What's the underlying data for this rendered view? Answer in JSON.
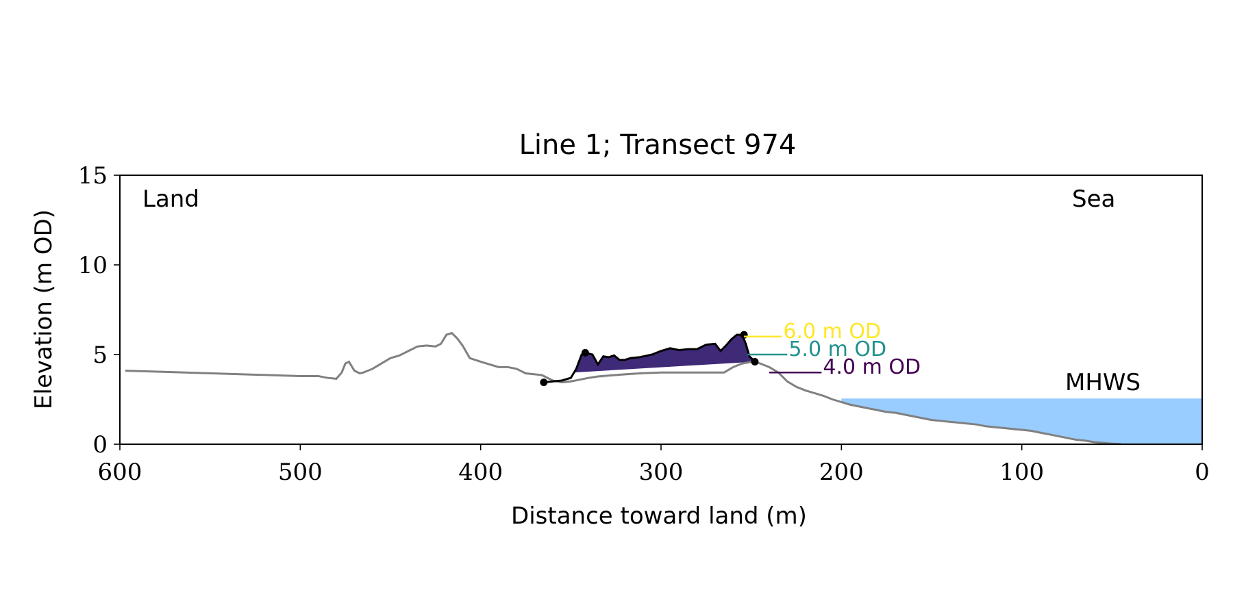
{
  "chart_data": {
    "type": "area",
    "title": "Line 1; Transect 974",
    "xlabel": "Distance toward land (m)",
    "ylabel": "Elevation (m OD)",
    "xlim": [
      600,
      0
    ],
    "ylim": [
      0,
      15
    ],
    "x_ticks": [
      600,
      500,
      400,
      300,
      200,
      100,
      0
    ],
    "y_ticks": [
      0,
      5,
      10,
      15
    ],
    "grid": false,
    "annotations": {
      "land": "Land",
      "sea": "Sea",
      "mhws": "MHWS"
    },
    "mhws": {
      "label": "MHWS",
      "elevation": 2.55,
      "x_start": 200,
      "color": "#99ccff",
      "label_color": "#6699cc"
    },
    "profile": {
      "color": "#808080",
      "x": [
        597,
        500,
        490,
        485,
        480,
        477,
        475,
        473,
        470,
        467,
        465,
        460,
        455,
        450,
        445,
        440,
        435,
        430,
        425,
        422,
        419,
        416,
        413,
        410,
        406,
        400,
        395,
        390,
        385,
        380,
        375,
        370,
        366,
        360,
        355,
        350,
        345,
        340,
        335,
        330,
        325,
        320,
        315,
        310,
        305,
        300,
        295,
        290,
        285,
        280,
        275,
        270,
        265,
        260,
        255,
        252,
        250,
        248,
        245,
        240,
        235,
        230,
        225,
        220,
        215,
        210,
        205,
        200,
        195,
        190,
        185,
        180,
        175,
        170,
        165,
        160,
        155,
        150,
        145,
        140,
        135,
        130,
        125,
        120,
        115,
        110,
        105,
        100,
        95,
        90,
        85,
        80,
        75,
        70,
        65,
        60,
        55,
        50,
        45
      ],
      "y": [
        4.1,
        3.8,
        3.8,
        3.7,
        3.65,
        4.0,
        4.5,
        4.6,
        4.1,
        3.95,
        4.0,
        4.2,
        4.5,
        4.8,
        4.95,
        5.2,
        5.45,
        5.5,
        5.45,
        5.6,
        6.1,
        6.2,
        5.9,
        5.5,
        4.8,
        4.6,
        4.45,
        4.3,
        4.3,
        4.2,
        3.95,
        3.9,
        3.85,
        3.55,
        3.45,
        3.5,
        3.6,
        3.7,
        3.78,
        3.82,
        3.86,
        3.9,
        3.93,
        3.96,
        3.98,
        4.0,
        4.0,
        4.0,
        4.0,
        4.0,
        4.0,
        4.0,
        4.0,
        4.3,
        4.5,
        4.55,
        4.6,
        4.6,
        4.5,
        4.3,
        4.0,
        3.5,
        3.2,
        3.0,
        2.85,
        2.7,
        2.5,
        2.35,
        2.2,
        2.1,
        2.0,
        1.9,
        1.8,
        1.75,
        1.65,
        1.55,
        1.45,
        1.35,
        1.3,
        1.25,
        1.2,
        1.15,
        1.1,
        1.0,
        0.95,
        0.9,
        0.85,
        0.8,
        0.75,
        0.65,
        0.55,
        0.45,
        0.35,
        0.25,
        0.2,
        0.12,
        0.07,
        0.03,
        0.01
      ]
    },
    "dune": {
      "color": "#000000",
      "x": [
        365,
        360,
        355,
        350,
        347,
        344,
        342,
        338,
        335,
        332,
        329,
        326,
        323,
        320,
        317,
        312,
        305,
        300,
        295,
        290,
        285,
        280,
        275,
        270,
        267,
        264,
        261,
        258,
        255,
        253,
        251,
        248
      ],
      "y": [
        3.45,
        3.5,
        3.55,
        3.7,
        4.2,
        5.0,
        5.1,
        5.0,
        4.45,
        4.9,
        4.85,
        4.95,
        4.7,
        4.7,
        4.8,
        4.85,
        5.0,
        5.2,
        5.35,
        5.25,
        5.3,
        5.3,
        5.55,
        5.6,
        5.2,
        5.5,
        5.85,
        6.1,
        6.1,
        5.6,
        4.9,
        4.6
      ],
      "markers": [
        [
          365,
          3.45
        ],
        [
          342,
          5.1
        ],
        [
          254,
          6.1
        ],
        [
          248,
          4.6
        ]
      ],
      "baseline_fill_color": "#cccccc"
    },
    "threshold_levels": [
      {
        "label": "6.0 m OD",
        "elevation": 6.0,
        "color": "#fde725",
        "label_x": 233
      },
      {
        "label": "5.0 m OD",
        "elevation": 5.0,
        "color": "#21918c",
        "fill": "#25a085",
        "label_x": 230
      },
      {
        "label": "4.0 m OD",
        "elevation": 4.0,
        "color": "#440154",
        "fill": "#3f2a77",
        "label_x": 211
      }
    ]
  }
}
